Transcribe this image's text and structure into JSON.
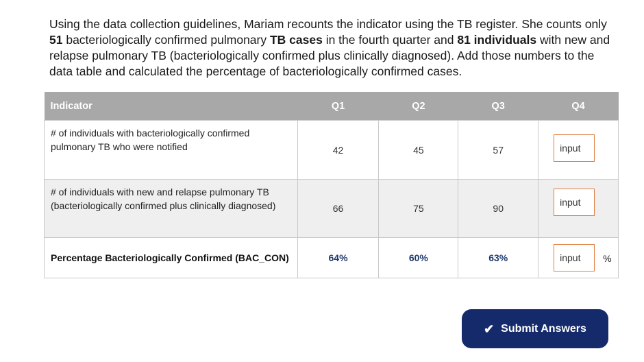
{
  "instructions": {
    "part1": "Using the data collection guidelines, Mariam recounts the indicator using the TB register. She counts only ",
    "bold1": "51",
    "part2": " bacteriologically confirmed pulmonary ",
    "bold2": "TB cases",
    "part3": " in the fourth quarter and ",
    "bold3": "81 individuals",
    "part4": " with new and relapse pulmonary TB (bacteriologically confirmed plus clinically diagnosed). Add those numbers to the data table and calculated the percentage of bacteriologically confirmed cases."
  },
  "table": {
    "headers": {
      "indicator": "Indicator",
      "q1": "Q1",
      "q2": "Q2",
      "q3": "Q3",
      "q4": "Q4"
    },
    "rows": [
      {
        "label": "# of individuals with bacteriologically confirmed pulmonary TB who were notified",
        "q1": "42",
        "q2": "45",
        "q3": "57",
        "q4_value": "input"
      },
      {
        "label": "# of individuals with new and relapse pulmonary TB (bacteriologically confirmed plus clinically diagnosed)",
        "q1": "66",
        "q2": "75",
        "q3": "90",
        "q4_value": "input"
      },
      {
        "label": "Percentage Bacteriologically Confirmed (BAC_CON)",
        "q1": "64%",
        "q2": "60%",
        "q3": "63%",
        "q4_value": "input",
        "suffix": "%"
      }
    ]
  },
  "submit": {
    "icon": "check-icon",
    "check_glyph": "✔",
    "label": "Submit Answers"
  },
  "colors": {
    "header_bg": "#a8a8a8",
    "input_border": "#e07b3c",
    "button_bg": "#142a6b",
    "percent_text": "#1e3a6e"
  }
}
